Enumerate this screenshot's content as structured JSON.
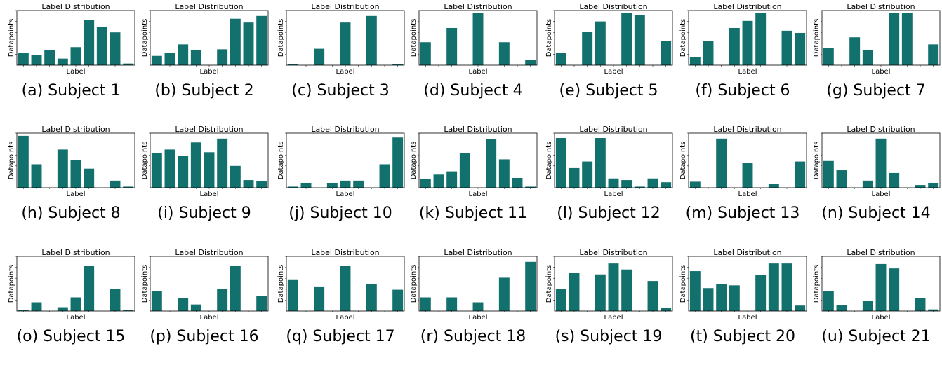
{
  "colors": {
    "bar": "#12706d",
    "axis": "#000000",
    "background": "#ffffff"
  },
  "chart_data": [
    {
      "type": "bar",
      "title": "Label Distribution",
      "xlabel": "Label",
      "ylabel": "Datapoints",
      "caption": "(a) Subject 1",
      "values": [
        0.22,
        0.18,
        0.28,
        0.12,
        0.33,
        0.83,
        0.7,
        0.6,
        0.03
      ]
    },
    {
      "type": "bar",
      "title": "Label Distribution",
      "xlabel": "Label",
      "ylabel": "Datapoints",
      "caption": "(b) Subject 2",
      "values": [
        0.17,
        0.22,
        0.38,
        0.27,
        0.0,
        0.29,
        0.85,
        0.78,
        0.9
      ]
    },
    {
      "type": "bar",
      "title": "Label Distribution",
      "xlabel": "Label",
      "ylabel": "Datapoints",
      "caption": "(c) Subject 3",
      "values": [
        0.02,
        0.0,
        0.3,
        0.0,
        0.78,
        0.0,
        0.9,
        0.0,
        0.02
      ]
    },
    {
      "type": "bar",
      "title": "Label Distribution",
      "xlabel": "Label",
      "ylabel": "Datapoints",
      "caption": "(d) Subject 4",
      "values": [
        0.42,
        0.0,
        0.68,
        0.0,
        0.95,
        0.0,
        0.42,
        0.0,
        0.1
      ]
    },
    {
      "type": "bar",
      "title": "Label Distribution",
      "xlabel": "Label",
      "ylabel": "Datapoints",
      "caption": "(e) Subject 5",
      "values": [
        0.22,
        0.0,
        0.61,
        0.8,
        0.0,
        0.96,
        0.91,
        0.0,
        0.44
      ]
    },
    {
      "type": "bar",
      "title": "Label Distribution",
      "xlabel": "Label",
      "ylabel": "Datapoints",
      "caption": "(f) Subject 6",
      "values": [
        0.15,
        0.44,
        0.0,
        0.68,
        0.81,
        0.96,
        0.0,
        0.63,
        0.59
      ]
    },
    {
      "type": "bar",
      "title": "Label Distribution",
      "xlabel": "Label",
      "ylabel": "Datapoints",
      "caption": "(g) Subject 7",
      "values": [
        0.31,
        0.0,
        0.51,
        0.28,
        0.0,
        0.95,
        0.95,
        0.0,
        0.38
      ]
    },
    {
      "type": "bar",
      "title": "Label Distribution",
      "xlabel": "Label",
      "ylabel": "Datapoints",
      "caption": "(h) Subject 8",
      "values": [
        0.95,
        0.43,
        0.0,
        0.7,
        0.5,
        0.35,
        0.0,
        0.13,
        0.02
      ]
    },
    {
      "type": "bar",
      "title": "Label Distribution",
      "xlabel": "Label",
      "ylabel": "Datapoints",
      "caption": "(i) Subject 9",
      "values": [
        0.64,
        0.7,
        0.59,
        0.83,
        0.65,
        0.9,
        0.4,
        0.14,
        0.12
      ]
    },
    {
      "type": "bar",
      "title": "Label Distribution",
      "xlabel": "Label",
      "ylabel": "Datapoints",
      "caption": "(j) Subject 10",
      "values": [
        0.02,
        0.09,
        0.0,
        0.09,
        0.13,
        0.13,
        0.0,
        0.43,
        0.92
      ]
    },
    {
      "type": "bar",
      "title": "Label Distribution",
      "xlabel": "Label",
      "ylabel": "Datapoints",
      "caption": "(k) Subject 11",
      "values": [
        0.16,
        0.24,
        0.3,
        0.64,
        0.0,
        0.89,
        0.52,
        0.18,
        0.02
      ]
    },
    {
      "type": "bar",
      "title": "Label Distribution",
      "xlabel": "Label",
      "ylabel": "Datapoints",
      "caption": "(l) Subject 12",
      "values": [
        0.91,
        0.36,
        0.48,
        0.91,
        0.17,
        0.14,
        0.02,
        0.17,
        0.1
      ]
    },
    {
      "type": "bar",
      "title": "Label Distribution",
      "xlabel": "Label",
      "ylabel": "Datapoints",
      "caption": "(m) Subject 13",
      "values": [
        0.11,
        0.0,
        0.9,
        0.0,
        0.45,
        0.0,
        0.07,
        0.0,
        0.48
      ]
    },
    {
      "type": "bar",
      "title": "Label Distribution",
      "xlabel": "Label",
      "ylabel": "Datapoints",
      "caption": "(n) Subject 14",
      "values": [
        0.49,
        0.32,
        0.0,
        0.13,
        0.9,
        0.27,
        0.0,
        0.05,
        0.09
      ]
    },
    {
      "type": "bar",
      "title": "Label Distribution",
      "xlabel": "Label",
      "ylabel": "Datapoints",
      "caption": "(o) Subject 15",
      "values": [
        0.02,
        0.16,
        0.0,
        0.07,
        0.25,
        0.83,
        0.0,
        0.4,
        0.02
      ]
    },
    {
      "type": "bar",
      "title": "Label Distribution",
      "xlabel": "Label",
      "ylabel": "Datapoints",
      "caption": "(p) Subject 16",
      "values": [
        0.37,
        0.0,
        0.24,
        0.12,
        0.0,
        0.41,
        0.83,
        0.0,
        0.27
      ]
    },
    {
      "type": "bar",
      "title": "Label Distribution",
      "xlabel": "Label",
      "ylabel": "Datapoints",
      "caption": "(q) Subject 17",
      "values": [
        0.58,
        0.0,
        0.45,
        0.0,
        0.83,
        0.0,
        0.5,
        0.0,
        0.39
      ]
    },
    {
      "type": "bar",
      "title": "Label Distribution",
      "xlabel": "Label",
      "ylabel": "Datapoints",
      "caption": "(r) Subject 18",
      "values": [
        0.25,
        0.0,
        0.25,
        0.0,
        0.16,
        0.0,
        0.61,
        0.0,
        0.9
      ]
    },
    {
      "type": "bar",
      "title": "Label Distribution",
      "xlabel": "Label",
      "ylabel": "Datapoints",
      "caption": "(s) Subject 19",
      "values": [
        0.4,
        0.7,
        0.0,
        0.67,
        0.87,
        0.76,
        0.0,
        0.55,
        0.06
      ]
    },
    {
      "type": "bar",
      "title": "Label Distribution",
      "xlabel": "Label",
      "ylabel": "Datapoints",
      "caption": "(t) Subject 20",
      "values": [
        0.73,
        0.42,
        0.5,
        0.47,
        0.0,
        0.66,
        0.87,
        0.87,
        0.1
      ]
    },
    {
      "type": "bar",
      "title": "Label Distribution",
      "xlabel": "Label",
      "ylabel": "Datapoints",
      "caption": "(u) Subject 21",
      "values": [
        0.36,
        0.11,
        0.0,
        0.18,
        0.86,
        0.78,
        0.0,
        0.24,
        0.03
      ]
    }
  ]
}
